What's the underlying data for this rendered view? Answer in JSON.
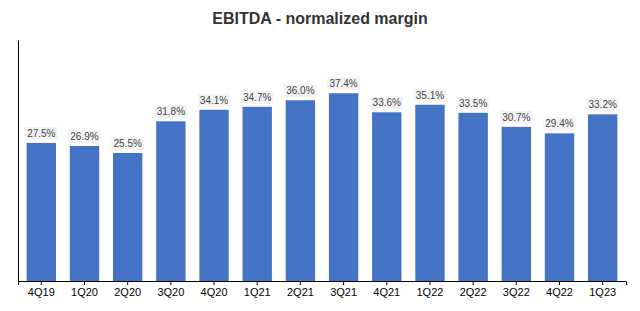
{
  "chart_data": {
    "type": "bar",
    "title": "EBITDA - normalized margin",
    "categories": [
      "4Q19",
      "1Q20",
      "2Q20",
      "3Q20",
      "4Q20",
      "1Q21",
      "2Q21",
      "3Q21",
      "4Q21",
      "1Q22",
      "2Q22",
      "3Q22",
      "4Q22",
      "1Q23"
    ],
    "values": [
      27.5,
      26.9,
      25.5,
      31.8,
      34.1,
      34.7,
      36.0,
      37.4,
      33.6,
      35.1,
      33.5,
      30.7,
      29.4,
      33.2
    ],
    "value_labels": [
      "27.5%",
      "26.9%",
      "25.5%",
      "31.8%",
      "34.1%",
      "34.7%",
      "36.0%",
      "37.4%",
      "33.6%",
      "35.1%",
      "33.5%",
      "30.7%",
      "29.4%",
      "33.2%"
    ],
    "color": "#4472C4",
    "ylim": [
      0,
      48
    ],
    "grid": false,
    "data_labels": true,
    "tick_labels": "x"
  }
}
